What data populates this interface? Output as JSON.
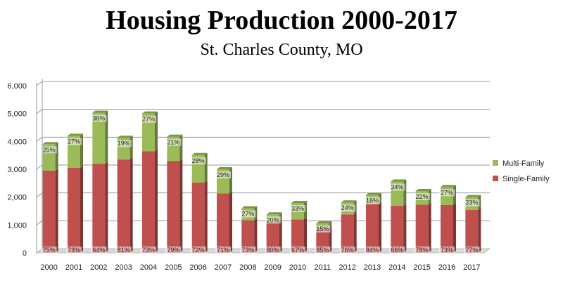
{
  "chart_data": {
    "type": "bar",
    "stacked": true,
    "title": "Housing Production 2000-2017",
    "subtitle": "St. Charles County, MO",
    "categories": [
      "2000",
      "2001",
      "2002",
      "2003",
      "2004",
      "2005",
      "2006",
      "2007",
      "2008",
      "2009",
      "2010",
      "2011",
      "2012",
      "2013",
      "2014",
      "2015",
      "2016",
      "2017"
    ],
    "series": [
      {
        "name": "Single-Family",
        "color": "#c0504d",
        "values": [
          2950,
          3050,
          3200,
          3350,
          3650,
          3300,
          2520,
          2130,
          1170,
          1100,
          1200,
          900,
          1380,
          1750,
          1690,
          1730,
          1720,
          1540
        ],
        "labels": [
          "75%",
          "73%",
          "64%",
          "81%",
          "73%",
          "79%",
          "72%",
          "71%",
          "73%",
          "80%",
          "67%",
          "85%",
          "76%",
          "84%",
          "66%",
          "78%",
          "73%",
          "77%"
        ]
      },
      {
        "name": "Multi-Family",
        "color": "#9bbb59",
        "values": [
          950,
          1150,
          1830,
          780,
          1350,
          870,
          990,
          870,
          430,
          280,
          590,
          160,
          430,
          330,
          870,
          490,
          640,
          460
        ],
        "labels": [
          "25%",
          "27%",
          "36%",
          "19%",
          "27%",
          "21%",
          "28%",
          "29%",
          "27%",
          "20%",
          "33%",
          "15%",
          "24%",
          "16%",
          "34%",
          "22%",
          "27%",
          "23%"
        ]
      }
    ],
    "yticks": [
      "0",
      "1,000",
      "2,000",
      "3,000",
      "4,000",
      "5,000",
      "6,000"
    ],
    "ylim": [
      0,
      6000
    ],
    "grid": true,
    "legend_position": "right"
  }
}
